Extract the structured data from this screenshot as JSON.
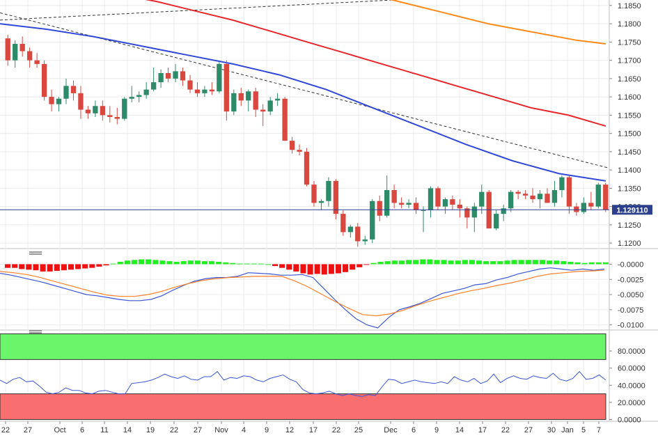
{
  "chart_data": [
    {
      "panel": "price",
      "type": "candlestick",
      "instrument": "EUR/USD",
      "timeframe": "daily",
      "x_tick_labels": [
        "22",
        "27",
        "Oct",
        "6",
        "11",
        "14",
        "19",
        "22",
        "27",
        "Nov",
        "4",
        "9",
        "12",
        "17",
        "22",
        "25",
        "Dec",
        "6",
        "9",
        "14",
        "17",
        "22",
        "27",
        "30",
        "Jan",
        "5",
        "7"
      ],
      "y_tick_labels": [
        "1.1200",
        "1.1250",
        "1.1300",
        "1.1350",
        "1.1400",
        "1.1450",
        "1.1500",
        "1.1550",
        "1.1600",
        "1.1650",
        "1.1700",
        "1.1750",
        "1.1800",
        "1.1850"
      ],
      "ylim": [
        1.1185,
        1.1865
      ],
      "last_price": 1.12911,
      "last_price_label": "1.129110",
      "colors": {
        "up": "#2e8b6a",
        "down": "#d9473f",
        "price_line": "#2b3f8c",
        "grid": "#e9e9e9"
      },
      "candles": [
        [
          1.176,
          1.177,
          1.1685,
          1.17
        ],
        [
          1.17,
          1.1755,
          1.168,
          1.1745
        ],
        [
          1.1745,
          1.1765,
          1.171,
          1.1725
        ],
        [
          1.1725,
          1.1735,
          1.168,
          1.17
        ],
        [
          1.17,
          1.172,
          1.168,
          1.169
        ],
        [
          1.169,
          1.17,
          1.159,
          1.16
        ],
        [
          1.16,
          1.162,
          1.156,
          1.158
        ],
        [
          1.158,
          1.16,
          1.156,
          1.1595
        ],
        [
          1.1595,
          1.165,
          1.158,
          1.163
        ],
        [
          1.163,
          1.1645,
          1.159,
          1.161
        ],
        [
          1.161,
          1.163,
          1.154,
          1.1565
        ],
        [
          1.1565,
          1.1575,
          1.154,
          1.1555
        ],
        [
          1.1555,
          1.159,
          1.1545,
          1.1575
        ],
        [
          1.1575,
          1.159,
          1.1535,
          1.155
        ],
        [
          1.155,
          1.1575,
          1.153,
          1.1545
        ],
        [
          1.1545,
          1.157,
          1.1525,
          1.154
        ],
        [
          1.154,
          1.16,
          1.1535,
          1.1595
        ],
        [
          1.1595,
          1.163,
          1.1585,
          1.16
        ],
        [
          1.16,
          1.1615,
          1.1585,
          1.1605
        ],
        [
          1.1605,
          1.164,
          1.1595,
          1.162
        ],
        [
          1.162,
          1.168,
          1.1615,
          1.164
        ],
        [
          1.164,
          1.1675,
          1.1625,
          1.1665
        ],
        [
          1.1665,
          1.168,
          1.164,
          1.165
        ],
        [
          1.165,
          1.169,
          1.164,
          1.167
        ],
        [
          1.167,
          1.168,
          1.163,
          1.1645
        ],
        [
          1.1645,
          1.166,
          1.161,
          1.162
        ],
        [
          1.162,
          1.164,
          1.16,
          1.161
        ],
        [
          1.161,
          1.163,
          1.16,
          1.162
        ],
        [
          1.162,
          1.164,
          1.1605,
          1.1615
        ],
        [
          1.1615,
          1.1695,
          1.161,
          1.169
        ],
        [
          1.169,
          1.17,
          1.1535,
          1.156
        ],
        [
          1.156,
          1.162,
          1.155,
          1.161
        ],
        [
          1.161,
          1.1625,
          1.1575,
          1.159
        ],
        [
          1.159,
          1.162,
          1.156,
          1.1615
        ],
        [
          1.1615,
          1.1625,
          1.1545,
          1.1565
        ],
        [
          1.1565,
          1.158,
          1.152,
          1.156
        ],
        [
          1.156,
          1.16,
          1.155,
          1.159
        ],
        [
          1.159,
          1.161,
          1.1575,
          1.1595
        ],
        [
          1.1595,
          1.16,
          1.148,
          1.148
        ],
        [
          1.148,
          1.149,
          1.1445,
          1.1455
        ],
        [
          1.1455,
          1.147,
          1.144,
          1.145
        ],
        [
          1.145,
          1.146,
          1.1355,
          1.136
        ],
        [
          1.136,
          1.137,
          1.13,
          1.131
        ],
        [
          1.131,
          1.132,
          1.129,
          1.1315
        ],
        [
          1.1315,
          1.138,
          1.13,
          1.137
        ],
        [
          1.137,
          1.1375,
          1.1265,
          1.128
        ],
        [
          1.128,
          1.129,
          1.122,
          1.123
        ],
        [
          1.123,
          1.125,
          1.1215,
          1.1245
        ],
        [
          1.1245,
          1.1255,
          1.119,
          1.1205
        ],
        [
          1.1205,
          1.122,
          1.1195,
          1.121
        ],
        [
          1.121,
          1.132,
          1.12,
          1.1315
        ],
        [
          1.1315,
          1.133,
          1.126,
          1.1275
        ],
        [
          1.1275,
          1.1385,
          1.127,
          1.1345
        ],
        [
          1.1345,
          1.136,
          1.1295,
          1.131
        ],
        [
          1.131,
          1.1325,
          1.1295,
          1.1305
        ],
        [
          1.1305,
          1.132,
          1.1295,
          1.131
        ],
        [
          1.131,
          1.1325,
          1.128,
          1.129
        ],
        [
          1.129,
          1.13,
          1.123,
          1.129
        ],
        [
          1.129,
          1.1355,
          1.127,
          1.135
        ],
        [
          1.135,
          1.1355,
          1.129,
          1.13
        ],
        [
          1.13,
          1.1325,
          1.128,
          1.132
        ],
        [
          1.132,
          1.133,
          1.129,
          1.1305
        ],
        [
          1.1305,
          1.132,
          1.127,
          1.1295
        ],
        [
          1.1295,
          1.13,
          1.124,
          1.127
        ],
        [
          1.127,
          1.131,
          1.123,
          1.13
        ],
        [
          1.13,
          1.136,
          1.128,
          1.134
        ],
        [
          1.134,
          1.1345,
          1.124,
          1.124
        ],
        [
          1.124,
          1.129,
          1.1235,
          1.128
        ],
        [
          1.128,
          1.1305,
          1.126,
          1.1295
        ],
        [
          1.1295,
          1.1345,
          1.1285,
          1.134
        ],
        [
          1.134,
          1.1345,
          1.132,
          1.1335
        ],
        [
          1.1335,
          1.1345,
          1.132,
          1.133
        ],
        [
          1.133,
          1.135,
          1.131,
          1.132
        ],
        [
          1.132,
          1.1345,
          1.1295,
          1.1335
        ],
        [
          1.1335,
          1.135,
          1.131,
          1.131
        ],
        [
          1.131,
          1.137,
          1.13,
          1.1345
        ],
        [
          1.1345,
          1.1385,
          1.1325,
          1.138
        ],
        [
          1.138,
          1.1385,
          1.128,
          1.13
        ],
        [
          1.13,
          1.131,
          1.1275,
          1.1285
        ],
        [
          1.1285,
          1.1325,
          1.128,
          1.131
        ],
        [
          1.131,
          1.134,
          1.129,
          1.13
        ],
        [
          1.13,
          1.1365,
          1.1295,
          1.136
        ],
        [
          1.136,
          1.1365,
          1.1285,
          1.1291
        ]
      ],
      "moving_averages": [
        {
          "color": "#3049d8",
          "values": [
            1.18,
            1.1785,
            1.1765,
            1.174,
            1.1715,
            1.169,
            1.166,
            1.162,
            1.157,
            1.152,
            1.147,
            1.1425,
            1.139,
            1.137
          ]
        },
        {
          "color": "#e8272b",
          "values": [
            1.19,
            1.188,
            1.186,
            1.1835,
            1.181,
            1.178,
            1.175,
            1.172,
            1.169,
            1.166,
            1.163,
            1.16,
            1.157,
            1.155,
            1.152
          ]
        },
        {
          "color": "#ff8c1a",
          "values": [
            1.19,
            1.188,
            1.186,
            1.184,
            1.182,
            1.18,
            1.1785,
            1.177,
            1.1755,
            1.1745
          ]
        }
      ],
      "trendlines": [
        {
          "style": "dashed",
          "color": "#333333",
          "from": [
            0,
            1.183
          ],
          "to": [
            1.0,
            1.1405
          ]
        },
        {
          "style": "dashed",
          "color": "#333333",
          "from": [
            0,
            1.181
          ],
          "to": [
            0.82,
            1.188
          ]
        }
      ]
    },
    {
      "panel": "macd",
      "type": "histogram+line",
      "y_tick_labels": [
        "-0.0000",
        "-0.0025",
        "-0.0050",
        "-0.0075",
        "-0.0100"
      ],
      "ylim": [
        -0.0105,
        0.0012
      ],
      "colors": {
        "positive": "#22ee22",
        "negative": "#ee1111",
        "macd": "#3a56d8",
        "signal": "#ff7f27"
      },
      "histogram": [
        -0.0006,
        -0.0006,
        -0.0008,
        -0.0009,
        -0.001,
        -0.0012,
        -0.0012,
        -0.0011,
        -0.001,
        -0.0009,
        -0.0008,
        -0.0007,
        -0.0006,
        -0.0004,
        -0.0002,
        0.0001,
        0.0004,
        0.0006,
        0.0007,
        0.0008,
        0.0008,
        0.0007,
        0.0006,
        0.0005,
        0.0004,
        0.0005,
        0.0006,
        0.0006,
        0.0005,
        0.0005,
        0.0004,
        0.0003,
        0.0002,
        0.0001,
        0.0001,
        0.0001,
        0.0001,
        0.0,
        -0.0003,
        -0.0006,
        -0.0009,
        -0.0012,
        -0.0015,
        -0.0017,
        -0.0016,
        -0.0017,
        -0.0016,
        -0.0015,
        -0.0013,
        -0.0009,
        -0.0005,
        -0.0001,
        0.0002,
        0.0004,
        0.0005,
        0.0006,
        0.0006,
        0.0007,
        0.0007,
        0.0008,
        0.0008,
        0.0007,
        0.0007,
        0.0006,
        0.0006,
        0.0007,
        0.0007,
        0.0006,
        0.0005,
        0.0005,
        0.0005,
        0.0006,
        0.0007,
        0.0007,
        0.0007,
        0.0007,
        0.0007,
        0.0006,
        0.0006,
        0.0005,
        0.0004,
        0.0003,
        0.0002,
        0.0003,
        0.0003,
        0.0003
      ],
      "macd": [
        -0.0015,
        -0.0018,
        -0.0022,
        -0.0026,
        -0.003,
        -0.0035,
        -0.004,
        -0.0045,
        -0.005,
        -0.0052,
        -0.0055,
        -0.0058,
        -0.006,
        -0.006,
        -0.0058,
        -0.0052,
        -0.0043,
        -0.0035,
        -0.0028,
        -0.0024,
        -0.0022,
        -0.0022,
        -0.002,
        -0.0014,
        -0.0015,
        -0.0016,
        -0.0018,
        -0.0018,
        -0.0017,
        -0.0022,
        -0.004,
        -0.0058,
        -0.0075,
        -0.009,
        -0.01,
        -0.0105,
        -0.0088,
        -0.0075,
        -0.007,
        -0.0064,
        -0.0056,
        -0.0048,
        -0.0044,
        -0.004,
        -0.0034,
        -0.0032,
        -0.0026,
        -0.0022,
        -0.0016,
        -0.0012,
        -0.0008,
        -0.0006,
        -0.0008,
        -0.001,
        -0.0008,
        -0.001,
        -0.0008
      ],
      "signal": [
        -0.0012,
        -0.0014,
        -0.0017,
        -0.0022,
        -0.0028,
        -0.0034,
        -0.004,
        -0.0046,
        -0.0051,
        -0.0053,
        -0.0053,
        -0.005,
        -0.0045,
        -0.0038,
        -0.0032,
        -0.0027,
        -0.0024,
        -0.0022,
        -0.0021,
        -0.002,
        -0.002,
        -0.002,
        -0.0028,
        -0.0038,
        -0.005,
        -0.0062,
        -0.0073,
        -0.0083,
        -0.0085,
        -0.0082,
        -0.0076,
        -0.0068,
        -0.0061,
        -0.0055,
        -0.0049,
        -0.0044,
        -0.004,
        -0.0035,
        -0.0031,
        -0.0026,
        -0.002,
        -0.0016,
        -0.0014,
        -0.0012,
        -0.0011,
        -0.001
      ]
    },
    {
      "panel": "rsi",
      "type": "line",
      "y_tick_labels": [
        "80.0000",
        "60.0000",
        "40.0000",
        "20.0000",
        "0.0000"
      ],
      "ylim": [
        -2,
        102
      ],
      "overbought": 70,
      "oversold": 30,
      "colors": {
        "line": "#3a56d8",
        "overbought_fill": "#6bf56b",
        "oversold_fill": "#f96e6e"
      },
      "values": [
        46,
        42,
        47,
        49,
        44,
        45,
        39,
        32,
        30,
        32,
        37,
        34,
        34,
        31,
        30,
        33,
        34,
        32,
        30,
        30,
        42,
        43,
        44,
        46,
        49,
        53,
        50,
        48,
        51,
        47,
        46,
        50,
        50,
        56,
        46,
        49,
        48,
        51,
        50,
        46,
        44,
        48,
        50,
        52,
        47,
        44,
        35,
        31,
        30,
        31,
        33,
        30,
        28,
        30,
        28,
        27,
        29,
        28,
        38,
        47,
        46,
        42,
        44,
        46,
        44,
        43,
        42,
        44,
        42,
        50,
        46,
        44,
        48,
        42,
        45,
        53,
        43,
        48,
        51,
        48,
        47,
        51,
        49,
        48,
        54,
        47,
        45,
        48,
        56,
        47,
        48,
        52,
        46
      ]
    }
  ],
  "x_axis": {
    "labels": [
      "22",
      "27",
      "Oct",
      "6",
      "11",
      "14",
      "19",
      "22",
      "27",
      "Nov",
      "4",
      "9",
      "12",
      "17",
      "22",
      "25",
      "Dec",
      "6",
      "9",
      "14",
      "17",
      "22",
      "27",
      "30",
      "Jan",
      "5",
      "7"
    ]
  }
}
